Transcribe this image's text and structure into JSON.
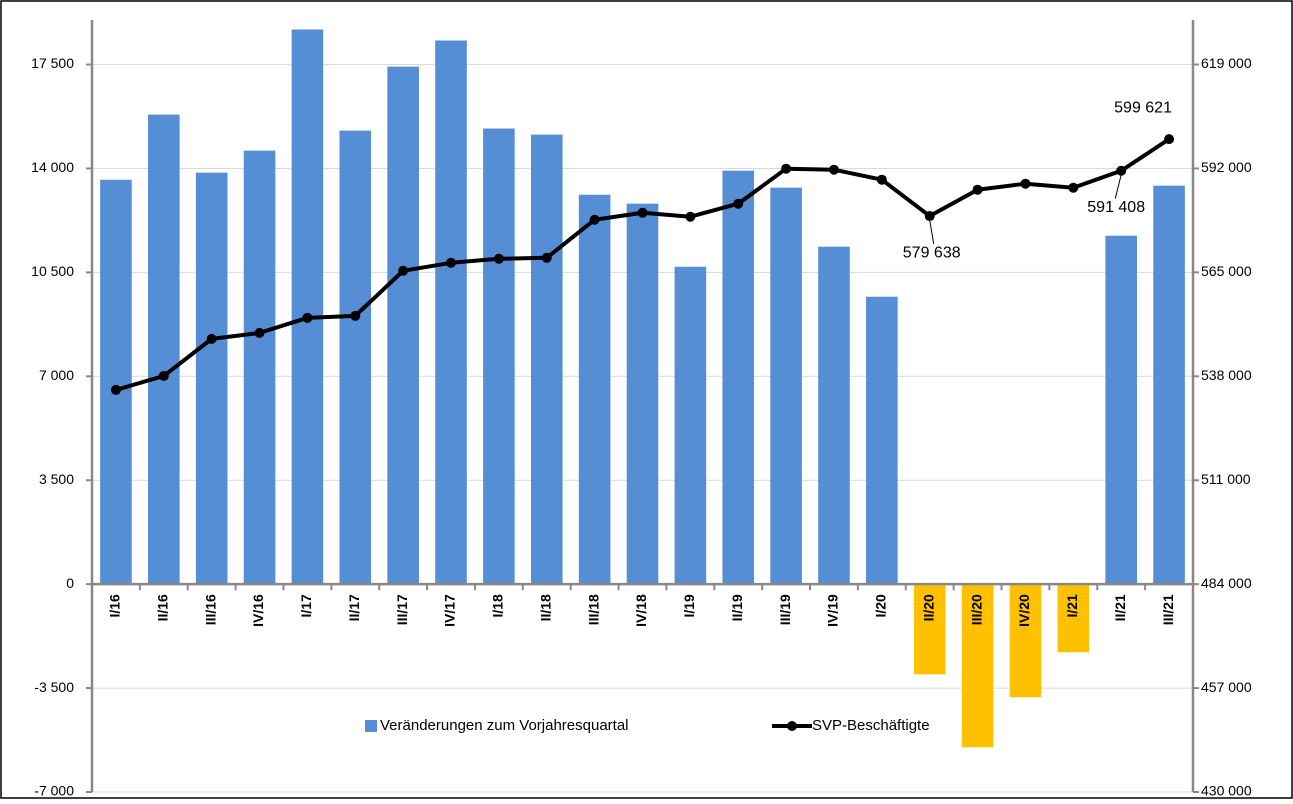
{
  "chart_data": {
    "type": "bar",
    "categories": [
      "I/16",
      "II/16",
      "III/16",
      "IV/16",
      "I/17",
      "II/17",
      "III/17",
      "IV/17",
      "I/18",
      "II/18",
      "III/18",
      "IV/18",
      "I/19",
      "II/19",
      "III/19",
      "IV/19",
      "I/20",
      "II/20",
      "III/20",
      "IV/20",
      "I/21",
      "II/21",
      "III/21"
    ],
    "series": [
      {
        "name": "Veränderungen zum Vorjahresquartal",
        "type": "bar",
        "color": "#558ed5",
        "negative_color": "#ffc000",
        "values": [
          13620,
          15815,
          13860,
          14600,
          18680,
          15275,
          17430,
          18310,
          15345,
          15140,
          13115,
          12815,
          10690,
          13925,
          13355,
          11365,
          9680,
          -3035,
          -5495,
          -3810,
          -2295,
          11735,
          13420
        ]
      },
      {
        "name": "SVP-Beschäftigte",
        "type": "line",
        "axis": "y2",
        "color": "#000000",
        "values": [
          534460,
          538100,
          547720,
          549280,
          553190,
          553710,
          565410,
          567490,
          568530,
          568790,
          578680,
          580500,
          579460,
          582840,
          591940,
          591680,
          589080,
          579638,
          586480,
          588040,
          587000,
          591408,
          599621
        ],
        "value_labels": [
          null,
          null,
          null,
          null,
          null,
          null,
          null,
          null,
          null,
          null,
          null,
          null,
          null,
          null,
          null,
          null,
          null,
          "579 638",
          null,
          null,
          null,
          "591 408",
          "599 621"
        ]
      }
    ],
    "ylim": [
      -7000,
      19000
    ],
    "yticks": [
      {
        "value": -7000,
        "label": "-7 000"
      },
      {
        "value": -3500,
        "label": "-3 500"
      },
      0,
      {
        "value": 3500,
        "label": "3 500"
      },
      {
        "value": 7000,
        "label": "7 000"
      },
      {
        "value": 10500,
        "label": "10 500"
      },
      {
        "value": 14000,
        "label": "14 000"
      },
      {
        "value": 17500,
        "label": "17 500"
      }
    ],
    "y2lim": [
      430000,
      630571
    ],
    "y2ticks": [
      {
        "value": 430000,
        "label": "430 000"
      },
      {
        "value": 457000,
        "label": "457 000"
      },
      {
        "value": 484000,
        "label": "484 000"
      },
      {
        "value": 511000,
        "label": "511 000"
      },
      {
        "value": 538000,
        "label": "538 000"
      },
      {
        "value": 565000,
        "label": "565 000"
      },
      {
        "value": 592000,
        "label": "592 000"
      },
      {
        "value": 619000,
        "label": "619 000"
      }
    ],
    "grid": true,
    "legend": "bottom"
  }
}
